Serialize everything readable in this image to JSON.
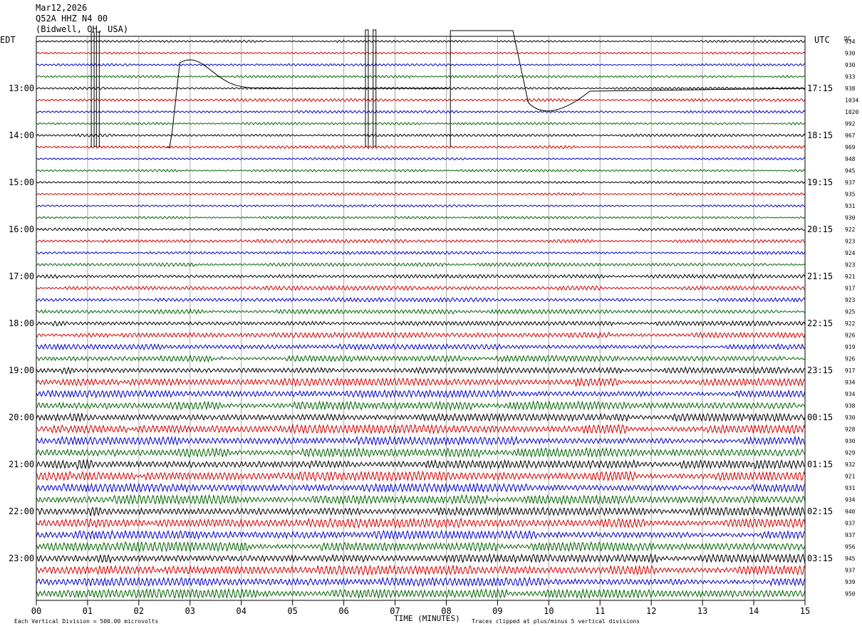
{
  "header": {
    "date": "Mar12,2026",
    "station": "Q52A HHZ N4 00",
    "location": "(Bidwell, OH, USA)"
  },
  "labels": {
    "left_tz": "EDT",
    "right_tz": "UTC",
    "dc_header": "DC",
    "x_axis": "TIME (MINUTES)",
    "scale_note": "Each Vertical Division =  500.00 microvolts",
    "clip_note": "Traces clipped at plus/minus 5 vertical divisions"
  },
  "colors": {
    "traces": [
      "#000000",
      "#d40000",
      "#0000c8",
      "#006400"
    ],
    "grid": "#aaaaaa"
  },
  "chart_data": {
    "type": "line",
    "title": "Q52A HHZ N4 00",
    "xlabel": "TIME (MINUTES)",
    "xlim": [
      0,
      15
    ],
    "x_ticks": [
      "00",
      "01",
      "02",
      "03",
      "04",
      "05",
      "06",
      "07",
      "08",
      "09",
      "10",
      "11",
      "12",
      "13",
      "14",
      "15"
    ],
    "rows": 48,
    "rows_per_hour": 4,
    "left_hour_labels": [
      "13:00",
      "14:00",
      "15:00",
      "16:00",
      "17:00",
      "18:00",
      "19:00",
      "20:00",
      "21:00",
      "22:00",
      "23:00"
    ],
    "right_hour_labels": [
      "17:15",
      "18:15",
      "19:15",
      "20:15",
      "21:15",
      "22:15",
      "23:15",
      "00:15",
      "01:15",
      "02:15",
      "03:15"
    ],
    "dc_values": [
      934,
      930,
      930,
      933,
      938,
      1034,
      1020,
      992,
      967,
      969,
      948,
      945,
      937,
      935,
      931,
      930,
      922,
      923,
      924,
      923,
      921,
      917,
      923,
      925,
      922,
      926,
      919,
      926,
      917,
      934,
      934,
      938,
      930,
      928,
      930,
      929,
      932,
      921,
      931,
      934,
      940,
      937,
      937,
      956,
      945,
      937,
      939,
      950
    ],
    "row_amplitude_divisions": [
      0.6,
      0.6,
      0.6,
      0.6,
      0.6,
      0.7,
      0.7,
      0.6,
      0.7,
      0.7,
      0.6,
      0.6,
      0.6,
      0.6,
      0.6,
      0.6,
      0.7,
      0.8,
      0.8,
      0.9,
      1.0,
      1.0,
      1.1,
      1.1,
      1.2,
      1.3,
      1.4,
      1.5,
      1.6,
      1.8,
      1.9,
      2.0,
      2.0,
      2.1,
      2.1,
      2.2,
      2.2,
      2.2,
      2.2,
      2.2,
      2.2,
      2.2,
      2.2,
      2.2,
      2.2,
      2.2,
      2.2,
      2.2
    ],
    "clip_divisions": 5,
    "scale_microvolts_per_division": 500
  }
}
